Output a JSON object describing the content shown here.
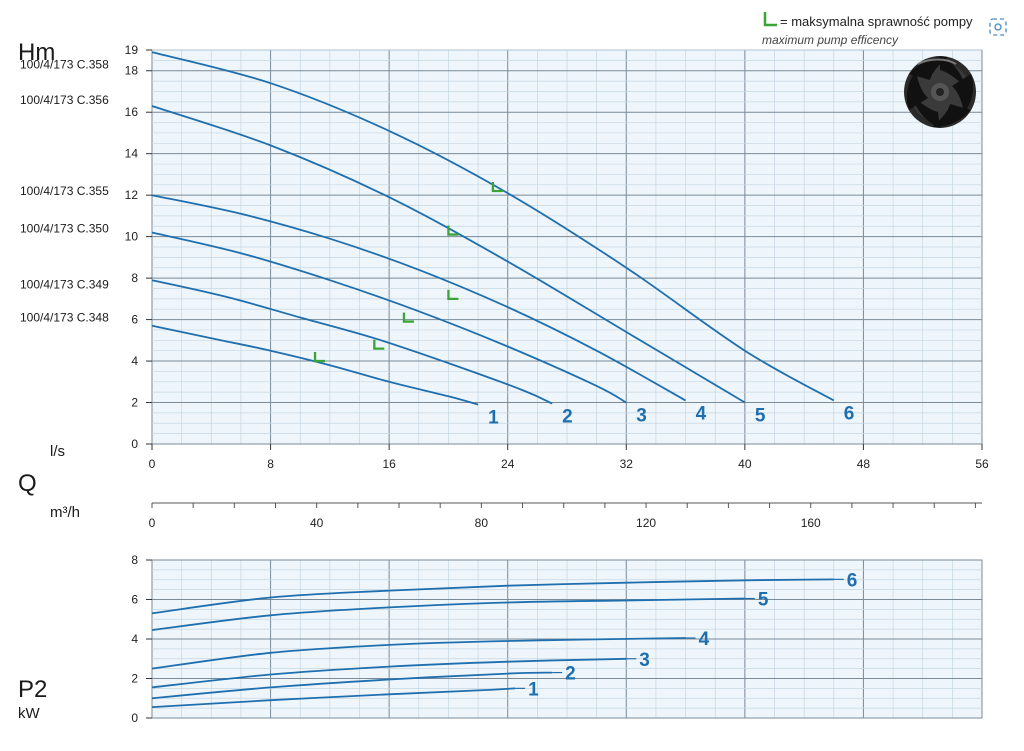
{
  "legend": {
    "text": "= maksymalna sprawność pompy",
    "subtext": "maximum pump efficency"
  },
  "axis_titles": {
    "head": "Hm",
    "flow_ls": "l/s",
    "flow_q": "Q",
    "flow_m3h": "m³/h",
    "power": "P2",
    "power_unit": "kW"
  },
  "models": [
    {
      "label": "100/4/173 C.358",
      "y": 18.3
    },
    {
      "label": "100/4/173 C.356",
      "y": 16.6
    },
    {
      "label": "100/4/173 C.355",
      "y": 12.2
    },
    {
      "label": "100/4/173 C.350",
      "y": 10.4
    },
    {
      "label": "100/4/173 C.349",
      "y": 7.7
    },
    {
      "label": "100/4/173 C.348",
      "y": 6.1
    }
  ],
  "colors": {
    "curve": "#1f6fae",
    "label": "#1f6fae",
    "marker": "#3aa535",
    "grid_major": "#7a8a99",
    "grid_minor": "#c6d6e2",
    "plot_bg": "#eef6fb"
  },
  "icons": {
    "impeller": "impeller-icon",
    "efficiency_marker": "efficiency-marker-icon",
    "screenshot": "screenshot-icon"
  },
  "chart_data": [
    {
      "type": "line",
      "title": "",
      "xlabel": "l/s",
      "ylabel": "Hm",
      "xlim": [
        0,
        56
      ],
      "ylim": [
        0,
        19
      ],
      "x_ticks": [
        0,
        8,
        16,
        24,
        32,
        40,
        48,
        56
      ],
      "y_ticks": [
        0,
        2,
        4,
        6,
        8,
        10,
        12,
        14,
        16,
        18,
        19
      ],
      "secondary_x": {
        "label": "m³/h",
        "ticks": [
          0,
          40,
          80,
          120,
          160
        ],
        "factor": 3.6
      },
      "grid": true,
      "series": [
        {
          "name": "1",
          "x": [
            0,
            4,
            8,
            12,
            16,
            20,
            22
          ],
          "y": [
            5.7,
            5.1,
            4.5,
            3.8,
            3.0,
            2.3,
            1.9
          ]
        },
        {
          "name": "2",
          "x": [
            0,
            5,
            10,
            15,
            20,
            25,
            27
          ],
          "y": [
            7.9,
            7.1,
            6.1,
            5.1,
            3.9,
            2.6,
            1.95
          ]
        },
        {
          "name": "3",
          "x": [
            0,
            6,
            12,
            18,
            24,
            30,
            32
          ],
          "y": [
            10.2,
            9.2,
            7.9,
            6.4,
            4.7,
            2.8,
            2.0
          ]
        },
        {
          "name": "4",
          "x": [
            0,
            6,
            12,
            18,
            24,
            30,
            36
          ],
          "y": [
            12.0,
            11.1,
            9.9,
            8.4,
            6.6,
            4.5,
            2.1
          ]
        },
        {
          "name": "5",
          "x": [
            0,
            8,
            16,
            24,
            32,
            40
          ],
          "y": [
            16.3,
            14.4,
            11.9,
            8.8,
            5.4,
            2.0
          ]
        },
        {
          "name": "6",
          "x": [
            0,
            8,
            16,
            24,
            32,
            40,
            46
          ],
          "y": [
            18.9,
            17.4,
            15.1,
            12.1,
            8.5,
            4.5,
            2.1
          ]
        }
      ],
      "efficiency_markers": [
        {
          "series": "1",
          "x": 11,
          "y": 4.0
        },
        {
          "series": "2",
          "x": 15,
          "y": 4.6
        },
        {
          "series": "3",
          "x": 17,
          "y": 5.9
        },
        {
          "series": "4",
          "x": 20,
          "y": 7.0
        },
        {
          "series": "5",
          "x": 20,
          "y": 10.1
        },
        {
          "series": "6",
          "x": 23,
          "y": 12.2
        }
      ]
    },
    {
      "type": "line",
      "title": "",
      "xlabel": "",
      "ylabel": "P2 kW",
      "xlim": [
        0,
        56
      ],
      "ylim": [
        0,
        8
      ],
      "y_ticks": [
        0,
        2,
        4,
        6,
        8
      ],
      "grid": true,
      "series": [
        {
          "name": "1",
          "x": [
            0,
            8,
            16,
            22,
            24.5
          ],
          "y": [
            0.55,
            0.9,
            1.2,
            1.4,
            1.5
          ]
        },
        {
          "name": "2",
          "x": [
            0,
            8,
            16,
            24,
            27
          ],
          "y": [
            1.0,
            1.55,
            1.95,
            2.25,
            2.3
          ]
        },
        {
          "name": "3",
          "x": [
            0,
            8,
            16,
            24,
            32
          ],
          "y": [
            1.55,
            2.2,
            2.6,
            2.85,
            3.0
          ]
        },
        {
          "name": "4",
          "x": [
            0,
            8,
            16,
            24,
            36
          ],
          "y": [
            2.5,
            3.3,
            3.7,
            3.9,
            4.05
          ]
        },
        {
          "name": "5",
          "x": [
            0,
            8,
            16,
            24,
            32,
            40
          ],
          "y": [
            4.45,
            5.2,
            5.6,
            5.85,
            5.95,
            6.05
          ]
        },
        {
          "name": "6",
          "x": [
            0,
            8,
            16,
            24,
            32,
            40,
            46
          ],
          "y": [
            5.3,
            6.1,
            6.45,
            6.7,
            6.85,
            6.97,
            7.02
          ]
        }
      ]
    }
  ]
}
